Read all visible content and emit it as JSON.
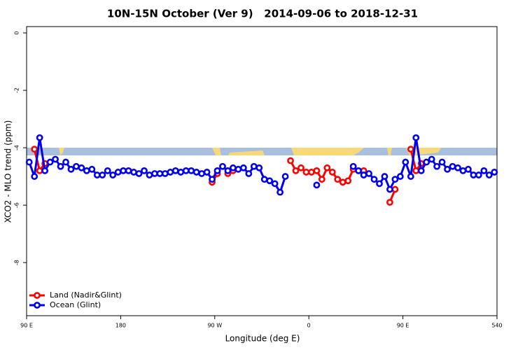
{
  "chart_data": {
    "type": "line",
    "title": "10N-15N October (Ver 9)   2014-09-06 to 2018-12-31",
    "x_label": "Longitude (deg E)",
    "y_label": "XCO2 - MLO trend (ppm)",
    "x": [
      92.5,
      97.5,
      102.5,
      107.5,
      112.5,
      117.5,
      122.5,
      127.5,
      132.5,
      137.5,
      142.5,
      147.5,
      152.5,
      157.5,
      162.5,
      167.5,
      172.5,
      177.5,
      182.5,
      187.5,
      192.5,
      197.5,
      202.5,
      207.5,
      212.5,
      217.5,
      222.5,
      227.5,
      232.5,
      237.5,
      242.5,
      247.5,
      252.5,
      257.5,
      262.5,
      267.5,
      272.5,
      277.5,
      282.5,
      287.5,
      292.5,
      297.5,
      302.5,
      307.5,
      312.5,
      317.5,
      322.5,
      327.5,
      332.5,
      337.5,
      342.5,
      347.5,
      352.5,
      357.5,
      362.5,
      367.5,
      372.5,
      377.5,
      382.5,
      387.5,
      392.5,
      397.5,
      402.5,
      407.5,
      412.5,
      417.5,
      422.5,
      427.5,
      432.5,
      437.5,
      442.5,
      447.5,
      452.5,
      457.5,
      462.5,
      467.5,
      472.5,
      477.5,
      482.5,
      487.5,
      492.5,
      497.5,
      502.5,
      507.5,
      512.5,
      517.5,
      522.5,
      527.5,
      532.5,
      537.5
    ],
    "series": [
      {
        "name": "Land (Nadir&Glint)",
        "color": "#ff0000",
        "values": [
          null,
          -4.05,
          -4.8,
          -4.55,
          null,
          null,
          null,
          null,
          null,
          null,
          null,
          null,
          null,
          null,
          null,
          null,
          null,
          null,
          null,
          null,
          null,
          null,
          null,
          null,
          null,
          null,
          null,
          null,
          null,
          null,
          null,
          null,
          null,
          null,
          null,
          -5.2,
          -4.9,
          null,
          -4.9,
          -4.8,
          null,
          null,
          null,
          null,
          null,
          null,
          null,
          null,
          null,
          null,
          -4.45,
          -4.8,
          -4.7,
          -4.85,
          -4.85,
          -4.8,
          -5.1,
          -4.7,
          -4.85,
          -5.1,
          -5.2,
          -5.15,
          -4.75,
          null,
          -4.8,
          null,
          null,
          null,
          null,
          -5.9,
          -5.45,
          null,
          null,
          -4.05,
          -4.8,
          -4.55,
          null,
          null,
          null,
          null,
          null,
          null,
          null,
          null,
          null,
          null,
          null,
          null,
          null,
          null
        ]
      },
      {
        "name": "Ocean (Glint)",
        "color": "#0000ee",
        "values": [
          -4.5,
          -5.0,
          -3.65,
          -4.8,
          -4.5,
          -4.4,
          -4.65,
          -4.5,
          -4.75,
          -4.65,
          -4.7,
          -4.8,
          -4.75,
          -4.95,
          -4.95,
          -4.8,
          -4.95,
          -4.85,
          -4.8,
          -4.8,
          -4.85,
          -4.9,
          -4.8,
          -4.95,
          -4.9,
          -4.9,
          -4.9,
          -4.85,
          -4.8,
          -4.85,
          -4.8,
          -4.8,
          -4.85,
          -4.9,
          -4.85,
          -5.1,
          -4.8,
          -4.65,
          -4.8,
          -4.7,
          -4.75,
          -4.7,
          -4.9,
          -4.65,
          -4.7,
          -5.1,
          -5.15,
          -5.25,
          -5.55,
          -5.0,
          null,
          null,
          null,
          null,
          null,
          -5.3,
          null,
          null,
          null,
          null,
          null,
          null,
          -4.65,
          -4.8,
          -4.95,
          -4.9,
          -5.1,
          -5.25,
          -5.0,
          -5.45,
          -5.1,
          -5.0,
          -4.5,
          -5.0,
          -3.65,
          -4.8,
          -4.5,
          -4.4,
          -4.65,
          -4.5,
          -4.75,
          -4.65,
          -4.7,
          -4.8,
          -4.75,
          -4.95,
          -4.95,
          -4.8,
          -4.95,
          -4.85
        ]
      }
    ],
    "xlim": [
      90,
      540
    ],
    "xticks": [
      {
        "value": 90,
        "label": "90 E"
      },
      180,
      {
        "value": 270,
        "label": "90 W"
      },
      {
        "value": 360,
        "label": "0"
      },
      {
        "value": 450,
        "label": "90 E"
      },
      540
    ],
    "ylim": [
      -9.85,
      0.22
    ],
    "yticks": [
      0,
      -2,
      -4,
      -6,
      -8
    ],
    "legend": "bottom-left"
  }
}
